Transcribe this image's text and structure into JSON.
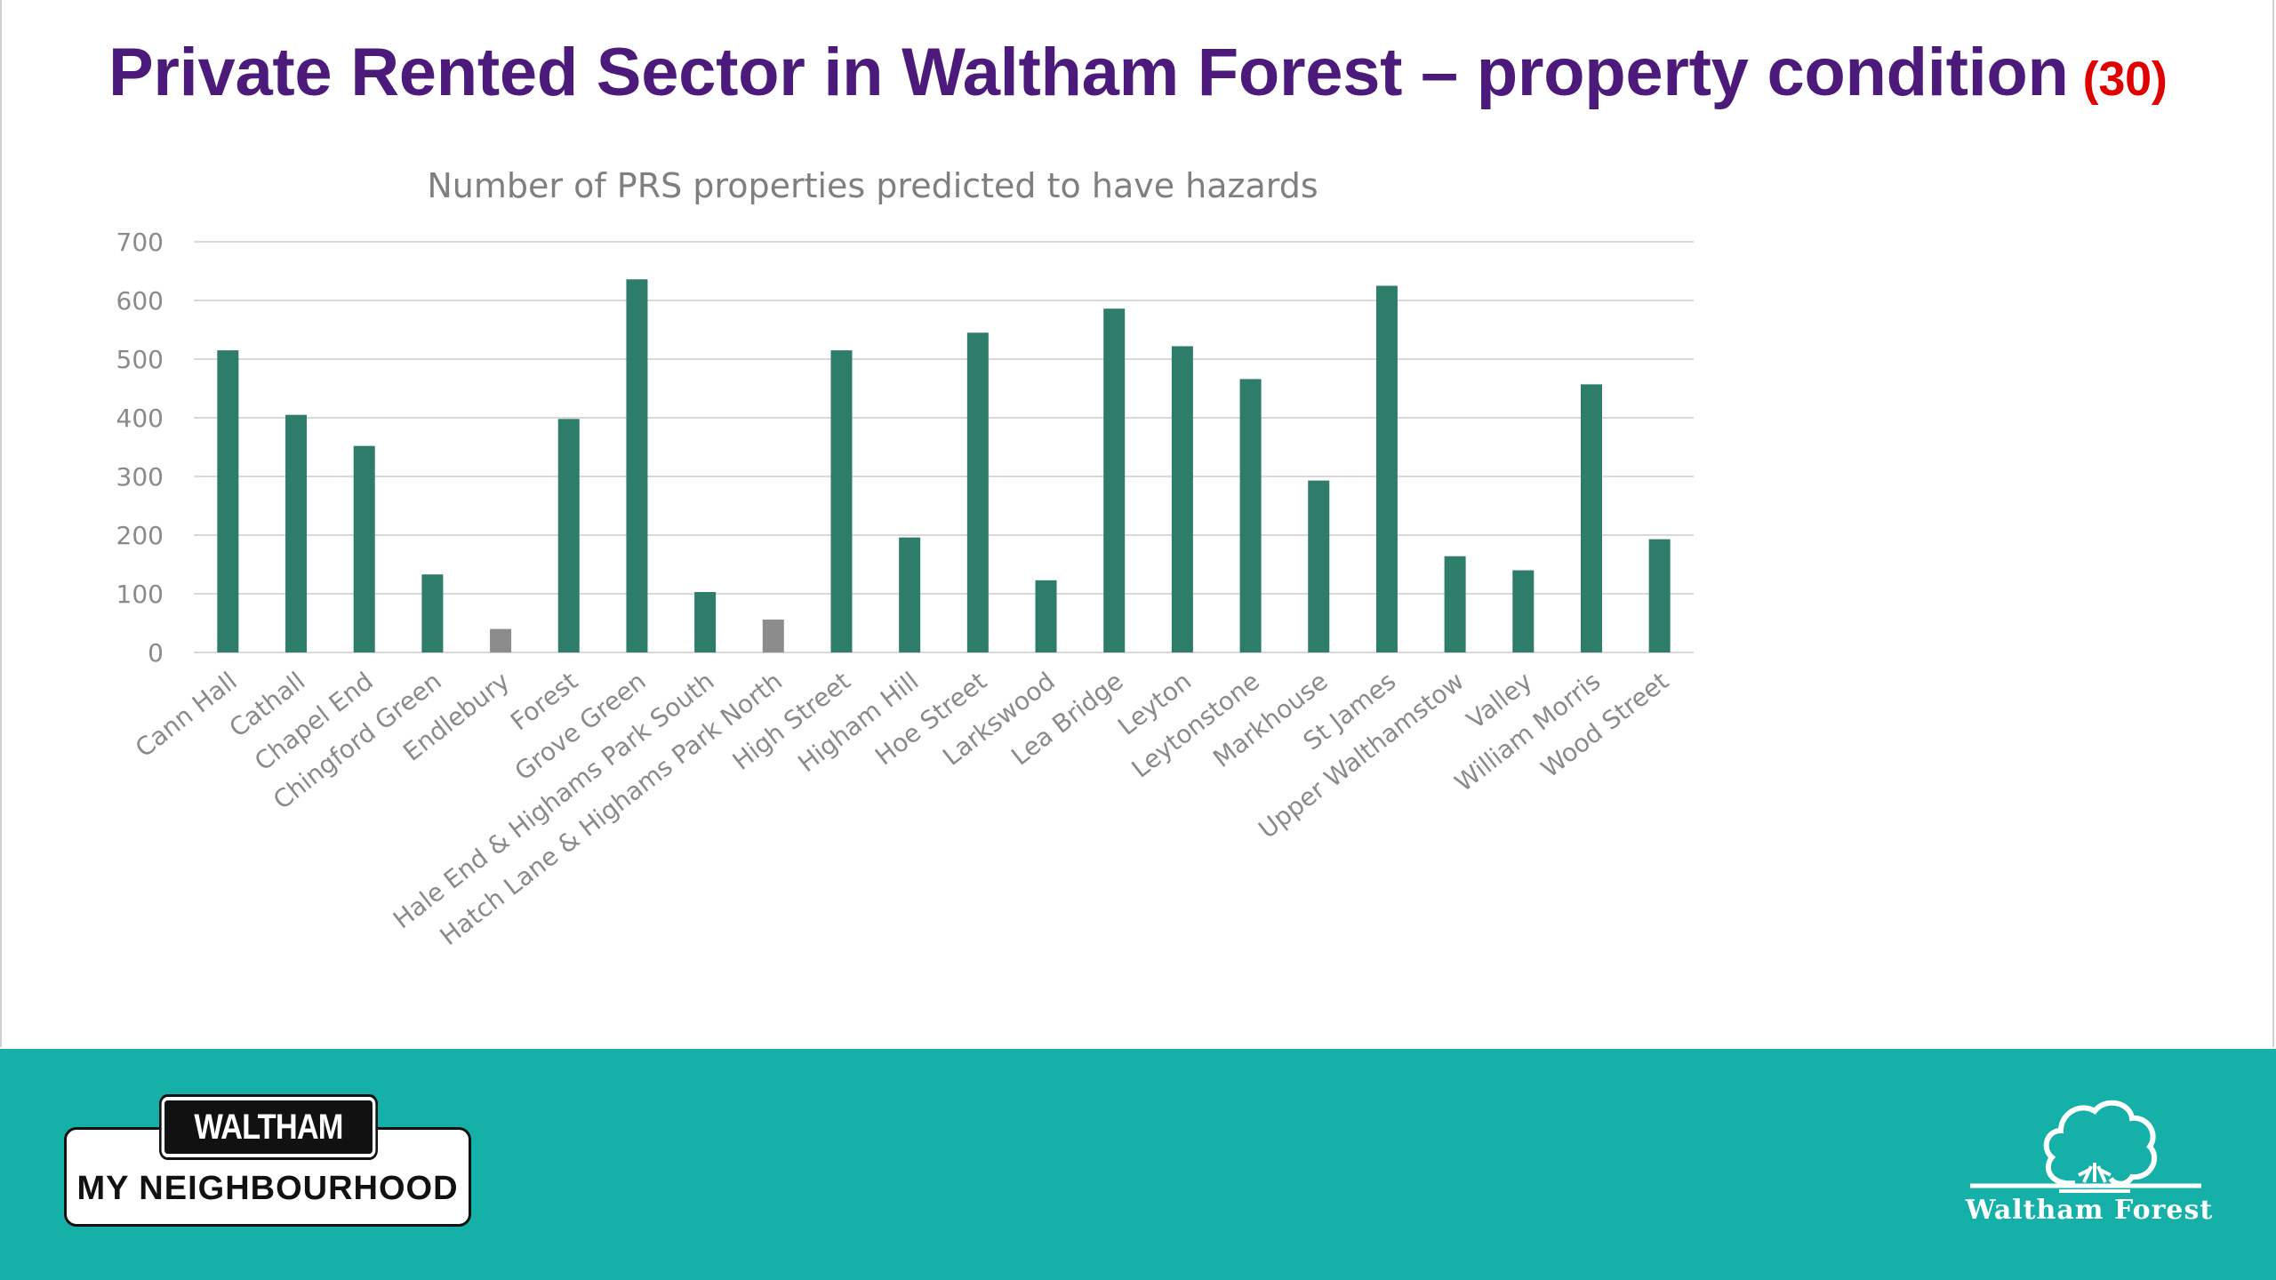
{
  "slide": {
    "title": "Private Rented Sector in Waltham Forest – property condition",
    "ref": "(30)"
  },
  "footer": {
    "badge_top": "WALTHAM FOREST",
    "badge_bottom": "MY NEIGHBOURHOOD",
    "logo_text": "Waltham Forest",
    "background_color": "#15b0a7"
  },
  "chart_data": {
    "type": "bar",
    "title": "Number of PRS properties predicted to have hazards",
    "xlabel": "",
    "ylabel": "",
    "ylim": [
      0,
      700
    ],
    "yticks": [
      0,
      100,
      200,
      300,
      400,
      500,
      600,
      700
    ],
    "grid": true,
    "legend": "none",
    "colors": {
      "bar": "#2e7d6b",
      "highlight": "#8c8c8c",
      "grid": "#d9d9d9",
      "text": "#8a8a8a"
    },
    "categories": [
      "Cann Hall",
      "Cathall",
      "Chapel End",
      "Chingford Green",
      "Endlebury",
      "Forest",
      "Grove Green",
      "Hale End & Highams Park South",
      "Hatch Lane & Highams Park North",
      "High Street",
      "Higham Hill",
      "Hoe Street",
      "Larkswood",
      "Lea Bridge",
      "Leyton",
      "Leytonstone",
      "Markhouse",
      "St James",
      "Upper Walthamstow",
      "Valley",
      "William Morris",
      "Wood Street"
    ],
    "values": [
      515,
      405,
      352,
      133,
      40,
      398,
      636,
      103,
      56,
      515,
      196,
      545,
      123,
      586,
      522,
      466,
      293,
      625,
      164,
      140,
      457,
      193
    ],
    "highlighted": [
      "Endlebury",
      "Hatch Lane & Highams Park North"
    ]
  }
}
